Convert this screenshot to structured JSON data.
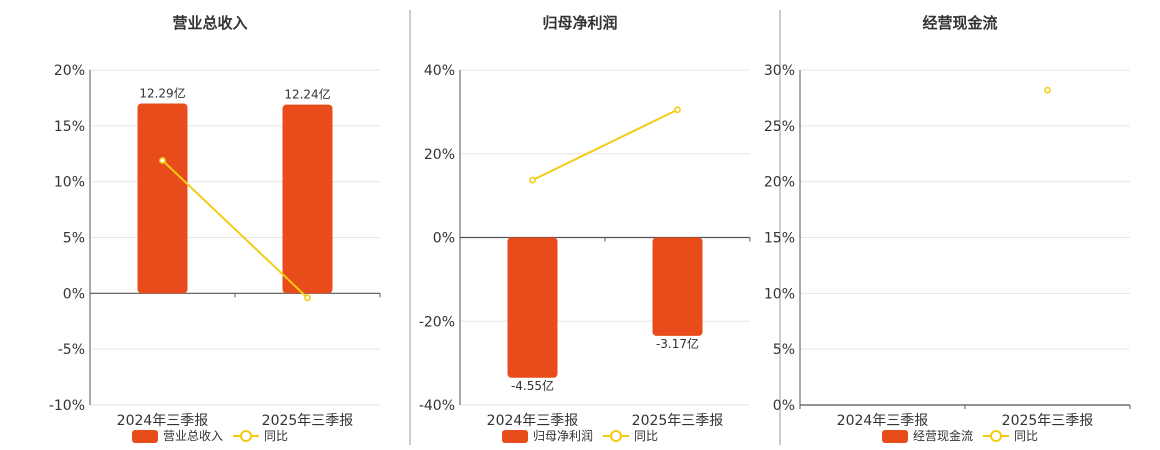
{
  "colors": {
    "bar": "#E84C1A",
    "line": "#F2CC13",
    "axis": "#555555",
    "grid": "#E6E6E6",
    "divider": "#999999",
    "text": "#333333"
  },
  "chart_data": [
    {
      "type": "bar",
      "title": "营业总收入",
      "categories": [
        "2024年三季报",
        "2025年三季报"
      ],
      "yticks": [
        "20%",
        "15%",
        "10%",
        "5%",
        "0%",
        "-5%",
        "-10%"
      ],
      "ylim": [
        -10,
        20
      ],
      "series": [
        {
          "name": "营业总收入",
          "type": "bar",
          "values": [
            17,
            16.9
          ],
          "labels": [
            "12.29亿",
            "12.24亿"
          ]
        },
        {
          "name": "同比",
          "type": "line",
          "values": [
            11.9,
            -0.4
          ]
        }
      ],
      "legend": "bottom",
      "grid": true
    },
    {
      "type": "bar",
      "title": "归母净利润",
      "categories": [
        "2024年三季报",
        "2025年三季报"
      ],
      "yticks": [
        "40%",
        "20%",
        "0%",
        "-20%",
        "-40%"
      ],
      "ylim": [
        -40,
        40
      ],
      "series": [
        {
          "name": "归母净利润",
          "type": "bar",
          "values": [
            -33.5,
            -23.5
          ],
          "labels": [
            "-4.55亿",
            "-3.17亿"
          ]
        },
        {
          "name": "同比",
          "type": "line",
          "values": [
            13.7,
            30.5
          ]
        }
      ],
      "legend": "bottom",
      "grid": true
    },
    {
      "type": "bar",
      "title": "经营现金流",
      "categories": [
        "2024年三季报",
        "2025年三季报"
      ],
      "yticks": [
        "30%",
        "25%",
        "20%",
        "15%",
        "10%",
        "5%",
        "0%"
      ],
      "ylim": [
        0,
        30
      ],
      "series": [
        {
          "name": "经营现金流",
          "type": "bar",
          "values": [
            null,
            null
          ],
          "labels": [
            "",
            ""
          ]
        },
        {
          "name": "同比",
          "type": "line",
          "values": [
            null,
            28.2
          ]
        }
      ],
      "legend": "bottom",
      "grid": true
    }
  ]
}
